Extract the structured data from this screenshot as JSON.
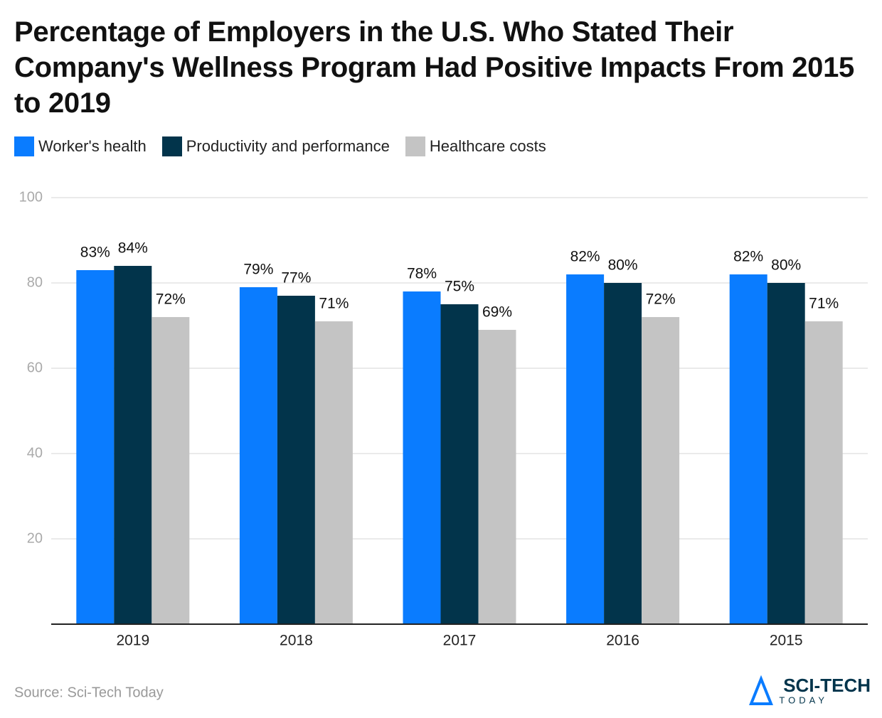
{
  "chart_data": {
    "type": "bar",
    "title": "Percentage of Employers in the U.S. Who Stated Their Company's Wellness Program Had Positive Impacts From 2015 to 2019",
    "categories": [
      "2019",
      "2018",
      "2017",
      "2016",
      "2015"
    ],
    "series": [
      {
        "name": "Worker's health",
        "color": "#0a7cff",
        "values": [
          83,
          79,
          78,
          82,
          82
        ],
        "value_labels": [
          "83%",
          "79%",
          "78%",
          "82%",
          "82%"
        ]
      },
      {
        "name": "Productivity and performance",
        "color": "#02344b",
        "values": [
          84,
          77,
          75,
          80,
          80
        ],
        "value_labels": [
          "84%",
          "77%",
          "75%",
          "80%",
          "80%"
        ]
      },
      {
        "name": "Healthcare costs",
        "color": "#c4c4c4",
        "values": [
          72,
          71,
          69,
          72,
          71
        ],
        "value_labels": [
          "72%",
          "71%",
          "69%",
          "72%",
          "71%"
        ]
      }
    ],
    "ylim": [
      0,
      100
    ],
    "yticks": [
      20,
      40,
      60,
      80,
      100
    ],
    "grid": true,
    "source": "Source: Sci-Tech Today",
    "logo": {
      "name": "SCI-TECH",
      "tagline": "TODAY"
    }
  }
}
